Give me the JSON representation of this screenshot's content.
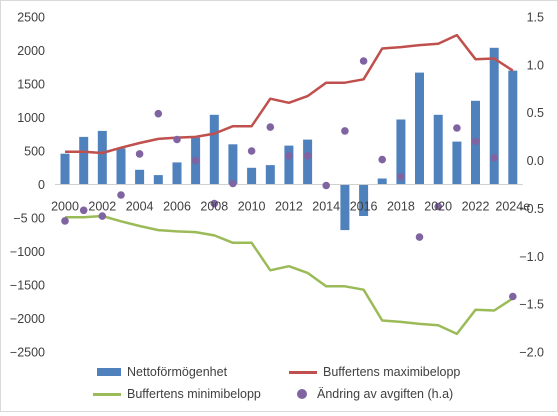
{
  "chart_data": {
    "type": "bar+line+scatter",
    "categories": [
      "2000",
      "2001",
      "2002",
      "2003",
      "2004",
      "2005",
      "2006",
      "2007",
      "2008",
      "2009",
      "2010",
      "2011",
      "2012",
      "2013",
      "2014",
      "2015",
      "2016",
      "2017",
      "2018",
      "2019",
      "2020",
      "2021",
      "2022",
      "2023",
      "2024e"
    ],
    "x_tick_labels": [
      "2000",
      "2002",
      "2004",
      "2006",
      "2008",
      "2010",
      "2012",
      "2014",
      "2016",
      "2018",
      "2020",
      "2022",
      "2024e"
    ],
    "left_axis": {
      "min": -2500,
      "max": 2500,
      "step": 500,
      "tick_labels": [
        "2500",
        "2000",
        "1500",
        "1000",
        "500",
        "0",
        "−5 00",
        "−1000",
        "−1500",
        "−2000",
        "−2500"
      ]
    },
    "right_axis": {
      "min": -2.0,
      "max": 1.5,
      "step": 0.5,
      "tick_labels": [
        "1.5",
        "1.0",
        "0.5",
        "0.0",
        "−0.5",
        "−1.0",
        "−1.5",
        "−2.0"
      ]
    },
    "grid": false,
    "legend_position": "bottom",
    "series": [
      {
        "name": "Nettoförmögenhet",
        "type": "bar",
        "axis": "left",
        "color": "#4f81bd",
        "values": [
          460,
          710,
          800,
          540,
          220,
          140,
          330,
          700,
          1040,
          600,
          250,
          290,
          580,
          670,
          0,
          -680,
          -470,
          90,
          970,
          1670,
          1040,
          640,
          1250,
          2040,
          1700
        ]
      },
      {
        "name": "Buffertens maximibelopp",
        "type": "line",
        "axis": "left",
        "color": "#c0504d",
        "values": [
          490,
          490,
          470,
          550,
          620,
          680,
          700,
          710,
          760,
          870,
          870,
          1280,
          1220,
          1320,
          1520,
          1520,
          1570,
          2030,
          2050,
          2080,
          2100,
          2230,
          1870,
          1880,
          1700
        ]
      },
      {
        "name": "Buffertens minimibelopp",
        "type": "line",
        "axis": "left",
        "color": "#9bbb59",
        "values": [
          -490,
          -490,
          -470,
          -550,
          -620,
          -680,
          -700,
          -710,
          -760,
          -870,
          -870,
          -1280,
          -1220,
          -1320,
          -1520,
          -1520,
          -1570,
          -2030,
          -2050,
          -2080,
          -2100,
          -2230,
          -1870,
          -1880,
          -1700
        ]
      },
      {
        "name": "Ändring av avgiften (h.a)",
        "type": "scatter",
        "axis": "right",
        "color": "#8064a2",
        "values": [
          -0.63,
          -0.52,
          -0.58,
          -0.36,
          0.07,
          0.49,
          0.22,
          0.0,
          -0.45,
          -0.24,
          0.1,
          0.35,
          0.05,
          0.05,
          -0.26,
          0.31,
          1.04,
          0.01,
          -0.17,
          -0.8,
          -0.48,
          0.34,
          0.2,
          0.03,
          -1.42
        ]
      }
    ]
  }
}
